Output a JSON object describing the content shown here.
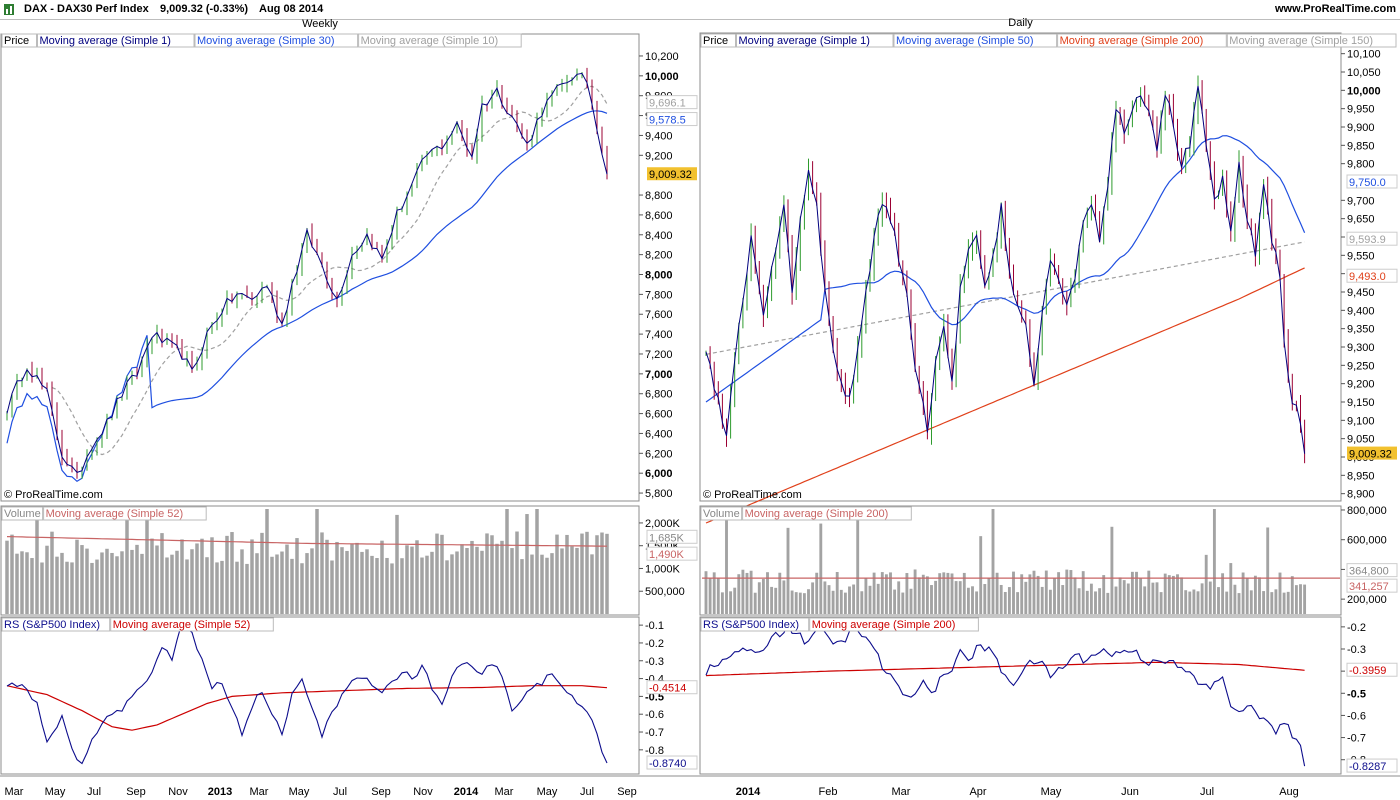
{
  "header": {
    "symbol": "DAX - DAX30 Perf Index",
    "quote": "9,009.32 (-0.33%)",
    "date": "Aug 08 2014",
    "site": "www.ProRealTime.com"
  },
  "colors": {
    "price_ma1": "#00007f",
    "ma_blue": "#1f4fe0",
    "ma_grey": "#a0a0a0",
    "ma_red": "#e0401a",
    "up": "#2e9b2e",
    "down": "#9b0033",
    "volume_bar": "#a3a3a3",
    "vol_ma": "#c86464",
    "rs_line": "#0c0c8c",
    "rs_ma": "#cc0000",
    "last_price_bg": "#f2c12e"
  },
  "chart_data": [
    {
      "panel": "weekly-price",
      "type": "ohlc",
      "title": "Weekly",
      "legend": [
        "Price",
        "Moving average (Simple 1)",
        "Moving average (Simple 30)",
        "Moving average (Simple 10)"
      ],
      "y_ticks": [
        5800,
        6000,
        6200,
        6400,
        6600,
        6800,
        7000,
        7200,
        7400,
        7600,
        7800,
        8000,
        8200,
        8400,
        8600,
        8800,
        9200,
        9400,
        9600,
        9800,
        10000,
        10200
      ],
      "y_tick_labels": [
        "5,800",
        "6,000",
        "6,200",
        "6,400",
        "6,600",
        "6,800",
        "7,000",
        "7,200",
        "7,400",
        "7,600",
        "7,800",
        "8,000",
        "8,200",
        "8,400",
        "8,600",
        "8,800",
        "9,200",
        "9,400",
        "9,600",
        "9,800",
        "10,000",
        "10,200"
      ],
      "y_range": [
        5720,
        10250
      ],
      "value_labels": {
        "ma10": "9,696.1",
        "ma30": "9,578.5",
        "last": "9,009.32"
      },
      "x_labels": [
        "Mar",
        "May",
        "Jul",
        "Sep",
        "Nov",
        "2013",
        "Mar",
        "May",
        "Jul",
        "Sep",
        "Nov",
        "2014",
        "Mar",
        "May",
        "Jul",
        "Sep"
      ],
      "copyright": "© ProRealTime.com",
      "close_anchors": [
        [
          0,
          6650
        ],
        [
          4,
          7100
        ],
        [
          8,
          6800
        ],
        [
          11,
          6200
        ],
        [
          14,
          5950
        ],
        [
          17,
          6300
        ],
        [
          20,
          6500
        ],
        [
          23,
          6800
        ],
        [
          26,
          7000
        ],
        [
          29,
          7400
        ],
        [
          32,
          7300
        ],
        [
          35,
          7200
        ],
        [
          37,
          7000
        ],
        [
          40,
          7400
        ],
        [
          43,
          7650
        ],
        [
          46,
          7800
        ],
        [
          49,
          7750
        ],
        [
          52,
          7900
        ],
        [
          55,
          7500
        ],
        [
          57,
          7900
        ],
        [
          60,
          8400
        ],
        [
          63,
          8100
        ],
        [
          66,
          7750
        ],
        [
          69,
          8200
        ],
        [
          72,
          8400
        ],
        [
          75,
          8150
        ],
        [
          78,
          8600
        ],
        [
          81,
          8900
        ],
        [
          84,
          9200
        ],
        [
          87,
          9300
        ],
        [
          90,
          9500
        ],
        [
          93,
          9200
        ],
        [
          95,
          9700
        ],
        [
          98,
          9850
        ],
        [
          101,
          9600
        ],
        [
          104,
          9300
        ],
        [
          107,
          9650
        ],
        [
          110,
          9850
        ],
        [
          113,
          10000
        ],
        [
          116,
          9950
        ],
        [
          118,
          9500
        ],
        [
          120,
          9009
        ]
      ]
    },
    {
      "panel": "daily-price",
      "type": "ohlc",
      "title": "Daily",
      "legend": [
        "Price",
        "Moving average (Simple 1)",
        "Moving average (Simple 50)",
        "Moving average (Simple 200)",
        "Moving average (Simple 150)"
      ],
      "y_ticks": [
        8900,
        8950,
        9000,
        9050,
        9100,
        9150,
        9200,
        9250,
        9300,
        9350,
        9400,
        9450,
        9500,
        9550,
        9600,
        9650,
        9700,
        9800,
        9850,
        9900,
        9950,
        10000,
        10050,
        10100
      ],
      "y_tick_labels": [
        "8,900",
        "8,950",
        "9,000",
        "9,050",
        "9,100",
        "9,150",
        "9,200",
        "9,250",
        "9,300",
        "9,350",
        "9,400",
        "9,450",
        "9,500",
        "9,550",
        "9,600",
        "9,650",
        "9,700",
        "9,800",
        "9,850",
        "9,900",
        "9,950",
        "10,000",
        "10,050",
        "10,100"
      ],
      "y_range": [
        8880,
        10110
      ],
      "value_labels": {
        "ma50": "9,750.0",
        "ma150": "9,593.9",
        "ma200": "9,493.0",
        "last": "9,009.32"
      },
      "x_labels": [
        "2014",
        "Feb",
        "Mar",
        "Apr",
        "May",
        "Jun",
        "Jul",
        "Aug"
      ],
      "copyright": "© ProRealTime.com",
      "close_anchors": [
        [
          0,
          9300
        ],
        [
          3,
          9150
        ],
        [
          5,
          9050
        ],
        [
          8,
          9350
        ],
        [
          11,
          9600
        ],
        [
          14,
          9400
        ],
        [
          17,
          9550
        ],
        [
          19,
          9700
        ],
        [
          21,
          9450
        ],
        [
          23,
          9650
        ],
        [
          25,
          9780
        ],
        [
          27,
          9700
        ],
        [
          29,
          9450
        ],
        [
          31,
          9300
        ],
        [
          33,
          9200
        ],
        [
          35,
          9150
        ],
        [
          37,
          9300
        ],
        [
          39,
          9450
        ],
        [
          41,
          9600
        ],
        [
          43,
          9700
        ],
        [
          45,
          9650
        ],
        [
          47,
          9550
        ],
        [
          49,
          9450
        ],
        [
          51,
          9250
        ],
        [
          53,
          9150
        ],
        [
          54,
          9050
        ],
        [
          56,
          9250
        ],
        [
          58,
          9350
        ],
        [
          60,
          9200
        ],
        [
          62,
          9450
        ],
        [
          64,
          9550
        ],
        [
          66,
          9600
        ],
        [
          68,
          9450
        ],
        [
          70,
          9550
        ],
        [
          72,
          9680
        ],
        [
          74,
          9500
        ],
        [
          76,
          9400
        ],
        [
          78,
          9350
        ],
        [
          80,
          9200
        ],
        [
          82,
          9400
        ],
        [
          84,
          9550
        ],
        [
          86,
          9500
        ],
        [
          88,
          9400
        ],
        [
          90,
          9500
        ],
        [
          92,
          9650
        ],
        [
          94,
          9700
        ],
        [
          96,
          9600
        ],
        [
          98,
          9750
        ],
        [
          100,
          9950
        ],
        [
          102,
          9900
        ],
        [
          104,
          9950
        ],
        [
          106,
          10000
        ],
        [
          108,
          9950
        ],
        [
          110,
          9850
        ],
        [
          112,
          10000
        ],
        [
          114,
          9900
        ],
        [
          116,
          9800
        ],
        [
          118,
          9850
        ],
        [
          120,
          10000
        ],
        [
          122,
          9850
        ],
        [
          124,
          9700
        ],
        [
          126,
          9750
        ],
        [
          128,
          9600
        ],
        [
          130,
          9800
        ],
        [
          132,
          9650
        ],
        [
          134,
          9550
        ],
        [
          136,
          9750
        ],
        [
          138,
          9600
        ],
        [
          140,
          9500
        ],
        [
          141,
          9300
        ],
        [
          143,
          9150
        ],
        [
          145,
          9100
        ],
        [
          146,
          9009
        ]
      ]
    },
    {
      "panel": "weekly-volume",
      "type": "bar",
      "legend": [
        "Volume",
        "Moving average (Simple 52)"
      ],
      "y_ticks": [
        500000,
        1000000,
        1500000,
        2000000
      ],
      "y_tick_labels": [
        "500,000",
        "1,000K",
        "1,500K",
        "2,000K"
      ],
      "y_range": [
        0,
        2350000
      ],
      "value_labels": {
        "volume": "1,685K",
        "ma52": "1,490K"
      },
      "ma_anchors": [
        [
          0,
          1700000
        ],
        [
          60,
          1550000
        ],
        [
          120,
          1490000
        ]
      ]
    },
    {
      "panel": "daily-volume",
      "type": "bar",
      "legend": [
        "Volume",
        "Moving average (Simple 200)"
      ],
      "y_ticks": [
        200000,
        400000,
        600000,
        800000
      ],
      "y_tick_labels": [
        "200,000",
        "400,000",
        "600,000",
        "800,000"
      ],
      "y_range": [
        100000,
        820000
      ],
      "value_labels": {
        "volume": "364,800",
        "ma200": "341,257"
      },
      "ma_value": 341257
    },
    {
      "panel": "weekly-rs",
      "type": "line",
      "legend": [
        "RS (S&P500 Index)",
        "Moving average (Simple 52)"
      ],
      "y_ticks": [
        -0.1,
        -0.2,
        -0.3,
        -0.4,
        -0.5,
        -0.6,
        -0.7,
        -0.8
      ],
      "y_tick_labels": [
        "-0.1",
        "-0.2",
        "-0.3",
        "-0.4",
        "-0.5",
        "-0.6",
        "-0.7",
        "-0.8"
      ],
      "y_range": [
        -0.93,
        -0.06
      ],
      "value_labels": {
        "ma52": "-0.4514",
        "rs": "-0.8740"
      },
      "rs_anchors": [
        [
          0,
          -0.45
        ],
        [
          3,
          -0.42
        ],
        [
          6,
          -0.55
        ],
        [
          8,
          -0.75
        ],
        [
          11,
          -0.62
        ],
        [
          13,
          -0.8
        ],
        [
          15,
          -0.88
        ],
        [
          17,
          -0.75
        ],
        [
          20,
          -0.62
        ],
        [
          23,
          -0.58
        ],
        [
          26,
          -0.45
        ],
        [
          29,
          -0.38
        ],
        [
          31,
          -0.22
        ],
        [
          33,
          -0.28
        ],
        [
          35,
          -0.07
        ],
        [
          37,
          -0.15
        ],
        [
          39,
          -0.3
        ],
        [
          41,
          -0.45
        ],
        [
          43,
          -0.42
        ],
        [
          45,
          -0.55
        ],
        [
          47,
          -0.72
        ],
        [
          49,
          -0.55
        ],
        [
          51,
          -0.47
        ],
        [
          53,
          -0.62
        ],
        [
          55,
          -0.7
        ],
        [
          57,
          -0.5
        ],
        [
          59,
          -0.42
        ],
        [
          61,
          -0.55
        ],
        [
          63,
          -0.72
        ],
        [
          65,
          -0.6
        ],
        [
          67,
          -0.48
        ],
        [
          69,
          -0.42
        ],
        [
          71,
          -0.38
        ],
        [
          73,
          -0.42
        ],
        [
          75,
          -0.48
        ],
        [
          77,
          -0.42
        ],
        [
          79,
          -0.36
        ],
        [
          81,
          -0.4
        ],
        [
          83,
          -0.33
        ],
        [
          85,
          -0.45
        ],
        [
          87,
          -0.55
        ],
        [
          89,
          -0.4
        ],
        [
          91,
          -0.3
        ],
        [
          93,
          -0.34
        ],
        [
          95,
          -0.38
        ],
        [
          97,
          -0.32
        ],
        [
          99,
          -0.38
        ],
        [
          101,
          -0.6
        ],
        [
          103,
          -0.5
        ],
        [
          105,
          -0.45
        ],
        [
          107,
          -0.42
        ],
        [
          109,
          -0.38
        ],
        [
          111,
          -0.45
        ],
        [
          113,
          -0.5
        ],
        [
          115,
          -0.55
        ],
        [
          117,
          -0.62
        ],
        [
          119,
          -0.8
        ],
        [
          120,
          -0.874
        ]
      ],
      "ma_anchors": [
        [
          0,
          -0.44
        ],
        [
          8,
          -0.49
        ],
        [
          15,
          -0.58
        ],
        [
          21,
          -0.67
        ],
        [
          25,
          -0.69
        ],
        [
          30,
          -0.66
        ],
        [
          35,
          -0.6
        ],
        [
          40,
          -0.54
        ],
        [
          45,
          -0.5
        ],
        [
          55,
          -0.48
        ],
        [
          65,
          -0.47
        ],
        [
          80,
          -0.455
        ],
        [
          95,
          -0.45
        ],
        [
          105,
          -0.44
        ],
        [
          115,
          -0.44
        ],
        [
          120,
          -0.451
        ]
      ]
    },
    {
      "panel": "daily-rs",
      "type": "line",
      "legend": [
        "RS (S&P500 Index)",
        "Moving average (Simple 200)"
      ],
      "y_ticks": [
        -0.2,
        -0.3,
        -0.4,
        -0.5,
        -0.6,
        -0.7,
        -0.8
      ],
      "y_tick_labels": [
        "-0.2",
        "-0.3",
        "-0.4",
        "-0.5",
        "-0.6",
        "-0.7",
        "-0.8"
      ],
      "y_range": [
        -0.86,
        -0.16
      ],
      "value_labels": {
        "ma200": "-0.3959",
        "rs": "-0.8287"
      },
      "rs_anchors": [
        [
          0,
          -0.4
        ],
        [
          4,
          -0.36
        ],
        [
          8,
          -0.3
        ],
        [
          12,
          -0.33
        ],
        [
          16,
          -0.25
        ],
        [
          20,
          -0.2
        ],
        [
          24,
          -0.26
        ],
        [
          28,
          -0.22
        ],
        [
          32,
          -0.28
        ],
        [
          36,
          -0.22
        ],
        [
          40,
          -0.26
        ],
        [
          43,
          -0.38
        ],
        [
          46,
          -0.45
        ],
        [
          48,
          -0.52
        ],
        [
          50,
          -0.5
        ],
        [
          53,
          -0.45
        ],
        [
          55,
          -0.5
        ],
        [
          58,
          -0.42
        ],
        [
          60,
          -0.38
        ],
        [
          62,
          -0.32
        ],
        [
          64,
          -0.35
        ],
        [
          67,
          -0.28
        ],
        [
          70,
          -0.32
        ],
        [
          72,
          -0.4
        ],
        [
          75,
          -0.45
        ],
        [
          78,
          -0.38
        ],
        [
          81,
          -0.35
        ],
        [
          84,
          -0.42
        ],
        [
          87,
          -0.38
        ],
        [
          90,
          -0.33
        ],
        [
          93,
          -0.35
        ],
        [
          96,
          -0.3
        ],
        [
          99,
          -0.33
        ],
        [
          102,
          -0.3
        ],
        [
          105,
          -0.32
        ],
        [
          108,
          -0.36
        ],
        [
          111,
          -0.34
        ],
        [
          114,
          -0.37
        ],
        [
          117,
          -0.4
        ],
        [
          120,
          -0.45
        ],
        [
          123,
          -0.48
        ],
        [
          126,
          -0.42
        ],
        [
          128,
          -0.55
        ],
        [
          130,
          -0.6
        ],
        [
          133,
          -0.55
        ],
        [
          136,
          -0.62
        ],
        [
          139,
          -0.68
        ],
        [
          141,
          -0.62
        ],
        [
          143,
          -0.7
        ],
        [
          145,
          -0.75
        ],
        [
          146,
          -0.8287
        ]
      ],
      "ma_anchors": [
        [
          0,
          -0.42
        ],
        [
          30,
          -0.4
        ],
        [
          60,
          -0.385
        ],
        [
          90,
          -0.37
        ],
        [
          110,
          -0.36
        ],
        [
          130,
          -0.37
        ],
        [
          146,
          -0.396
        ]
      ]
    }
  ]
}
